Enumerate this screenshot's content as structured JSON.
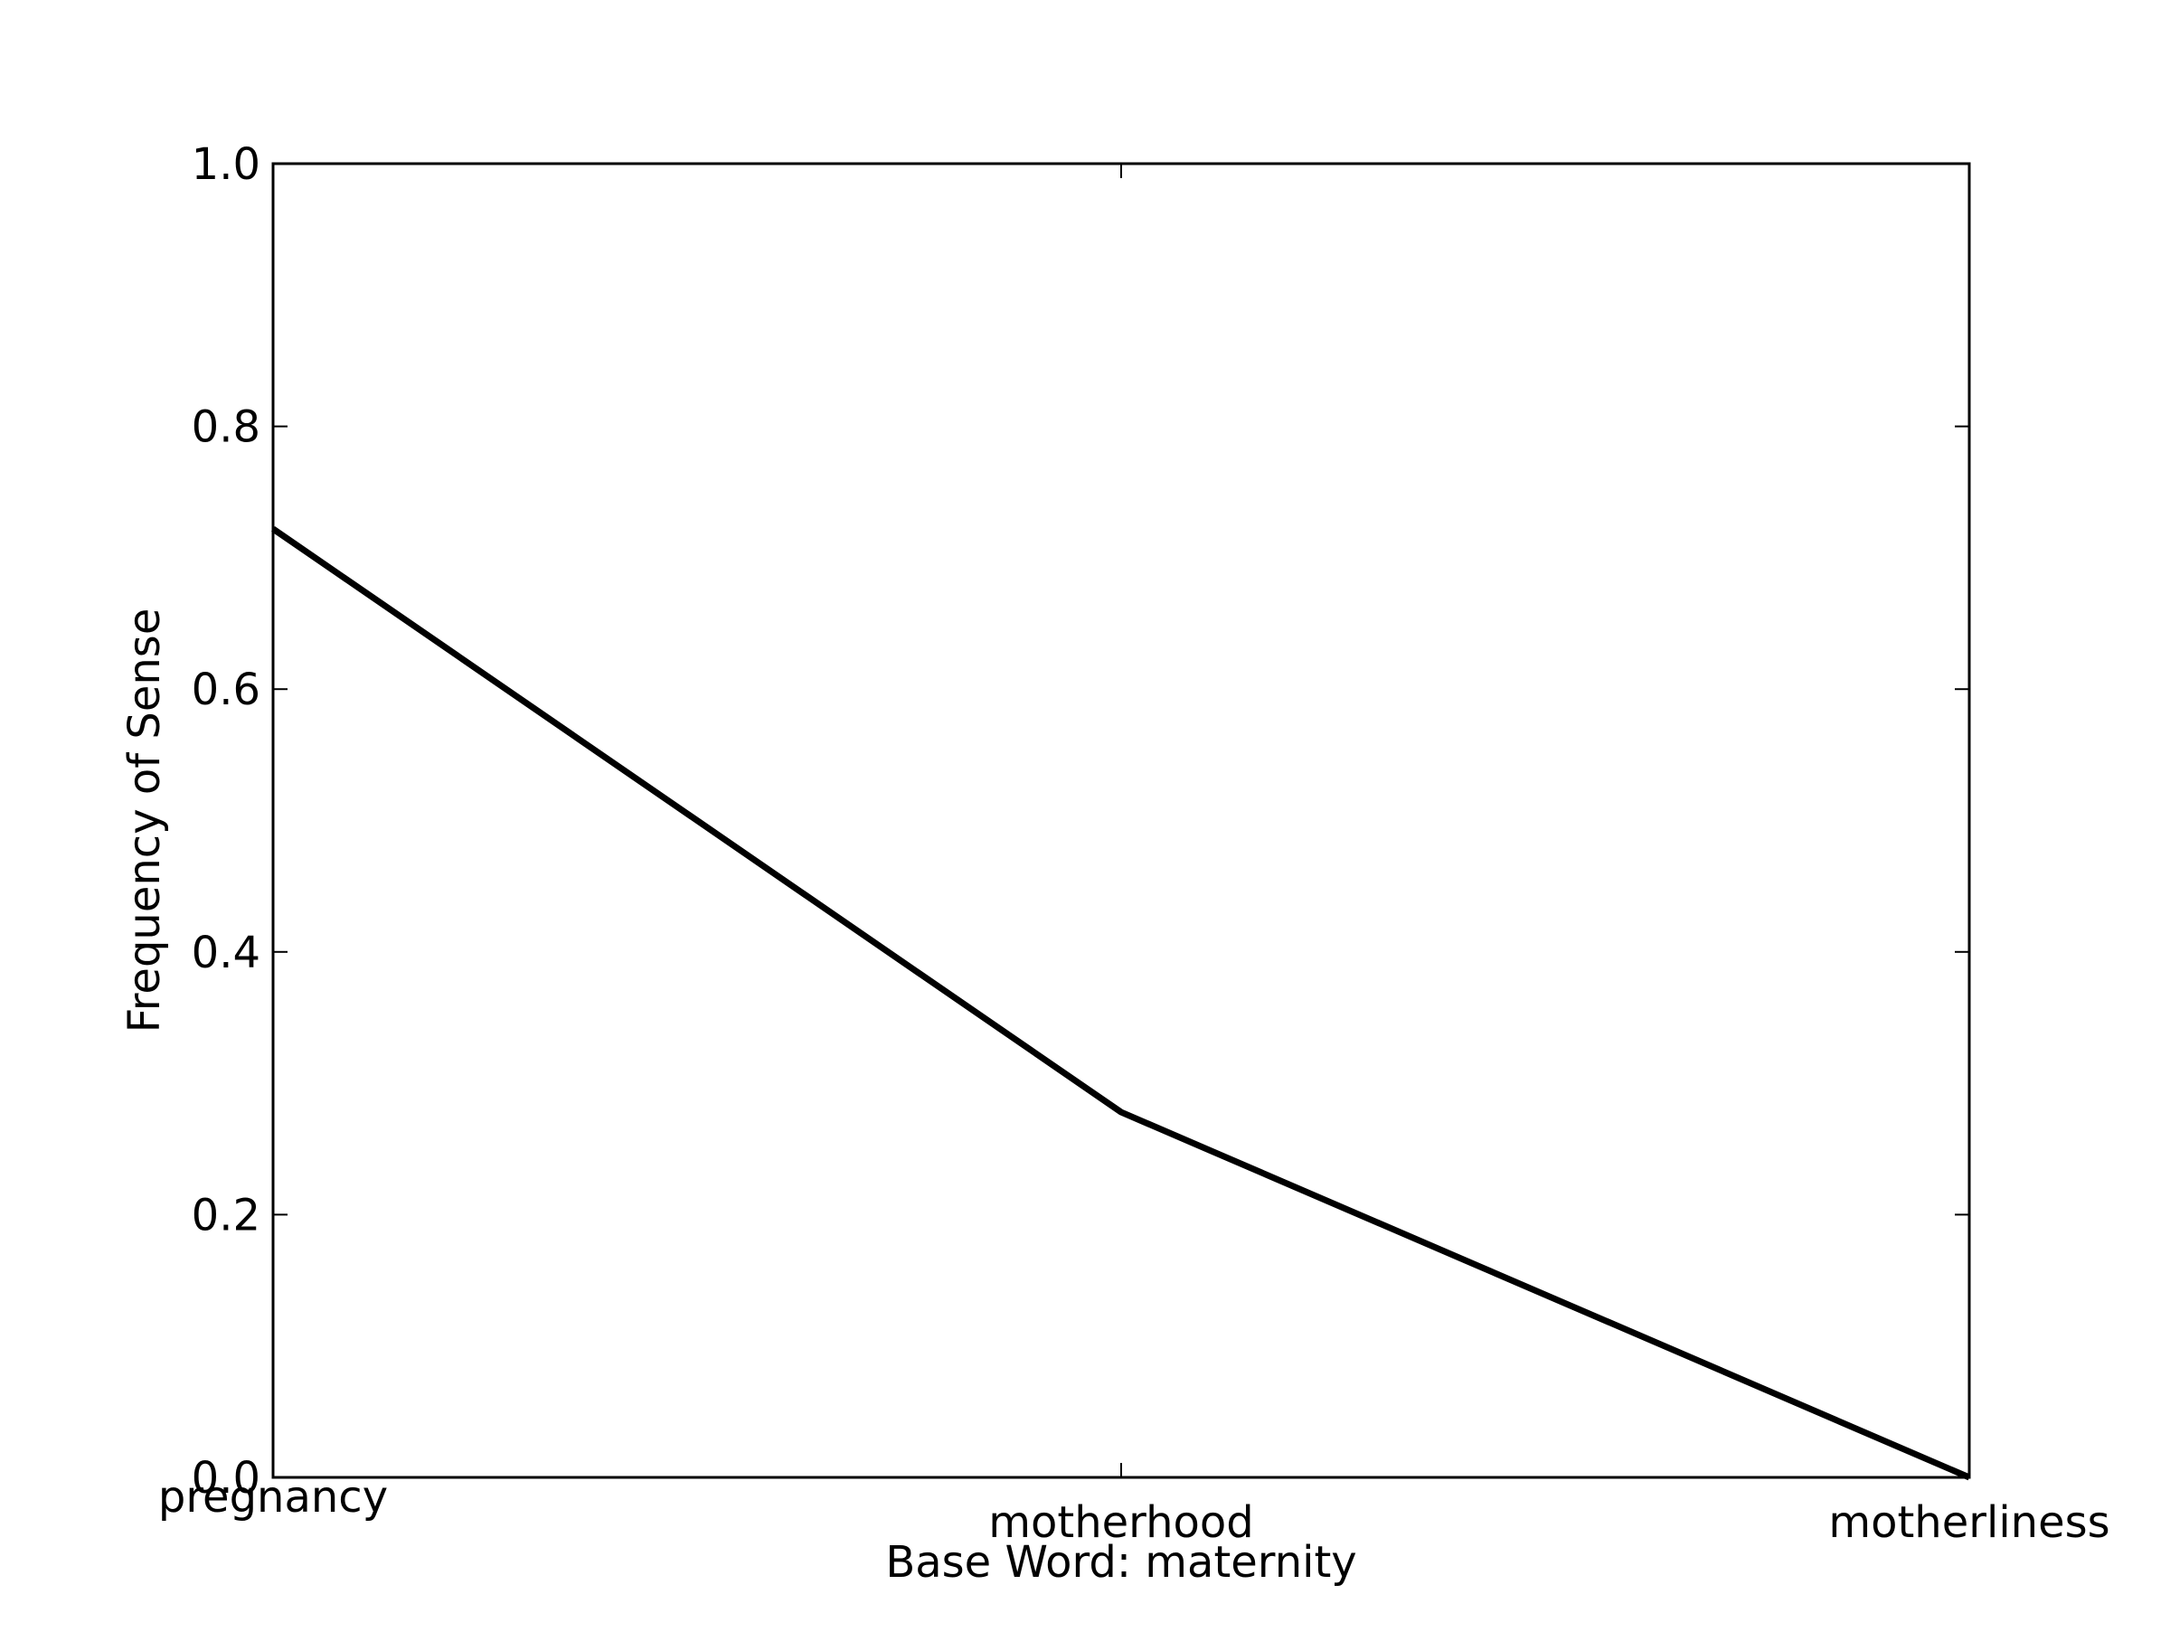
{
  "chart_data": {
    "type": "line",
    "title": "",
    "xlabel": "Base Word: maternity",
    "ylabel": "Frequency of Sense",
    "categories": [
      "pregnancy",
      "motherhood",
      "motherliness"
    ],
    "series": [
      {
        "values": [
          0.722,
          0.278,
          0.0
        ]
      }
    ],
    "ylim": [
      0.0,
      1.0
    ],
    "yticks": [
      "0.0",
      "0.2",
      "0.4",
      "0.6",
      "0.8",
      "1.0"
    ],
    "grid": false,
    "legend": "none",
    "colors": {
      "line": "#000000",
      "frame": "#000000",
      "background": "#ffffff"
    }
  }
}
